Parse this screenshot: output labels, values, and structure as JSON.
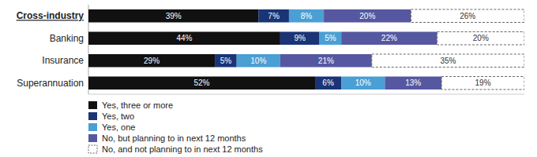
{
  "chart_data": {
    "type": "bar",
    "orientation": "horizontal",
    "stacked": true,
    "categories": [
      "Cross-industry",
      "Banking",
      "Insurance",
      "Superannuation"
    ],
    "series": [
      {
        "name": "Yes, three or more",
        "color": "#111111",
        "values": [
          39,
          44,
          29,
          52
        ],
        "value_labels": [
          "39%",
          "44%",
          "29%",
          "52%"
        ]
      },
      {
        "name": "Yes, two",
        "color": "#1a3476",
        "values": [
          7,
          9,
          5,
          6
        ],
        "value_labels": [
          "7%",
          "9%",
          "5%",
          "6%"
        ]
      },
      {
        "name": "Yes, one",
        "color": "#4a9fd4",
        "values": [
          8,
          5,
          10,
          10
        ],
        "value_labels": [
          "8%",
          "5%",
          "10%",
          "10%"
        ]
      },
      {
        "name": "No, but planning to in next 12 months",
        "color": "#5558a0",
        "values": [
          20,
          22,
          21,
          13
        ],
        "value_labels": [
          "20%",
          "22%",
          "21%",
          "13%"
        ]
      },
      {
        "name": "No, and not planning to in next 12 months",
        "color": "#ffffff",
        "line_style": "dashed",
        "values": [
          26,
          20,
          35,
          19
        ],
        "value_labels": [
          "26%",
          "20%",
          "35%",
          "19%"
        ]
      }
    ],
    "xlim": [
      0,
      100
    ],
    "xticks": [],
    "tick_labels": "y",
    "grid": false,
    "legend": "bottom",
    "data_labels": true
  }
}
